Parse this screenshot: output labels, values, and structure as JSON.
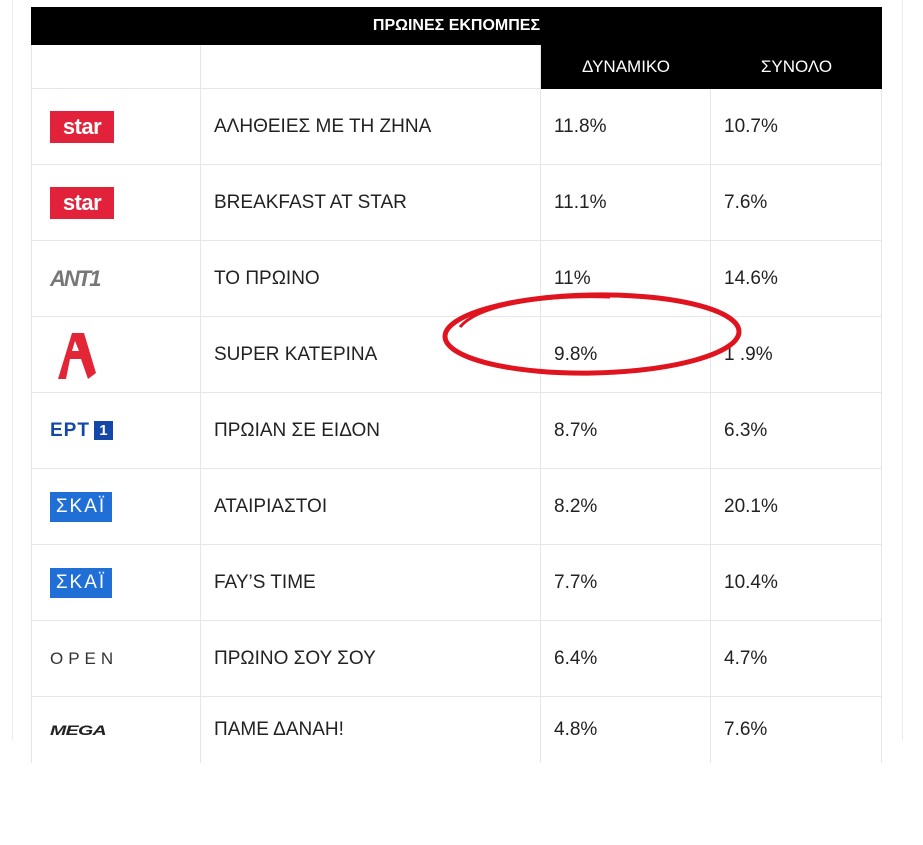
{
  "table": {
    "title": "ΠΡΩΙΝΕΣ ΕΚΠΟΜΠΕΣ",
    "columns": [
      "",
      "",
      "ΔΥΝΑΜΙΚΟ",
      "ΣΥΝΟΛΟ"
    ],
    "rows": [
      {
        "channel": "star-logo",
        "logo_text": "star",
        "show": "ΑΛΗΘΕΙΕΣ ΜΕ ΤΗ ΖΗΝΑ",
        "dynamiko": "11.8%",
        "synolo": "10.7%"
      },
      {
        "channel": "star-logo",
        "logo_text": "star",
        "show": "BREAKFAST AT STAR",
        "dynamiko": "11.1%",
        "synolo": "7.6%"
      },
      {
        "channel": "ant1-logo",
        "logo_text": "ANT1",
        "show": "ΤΟ ΠΡΩΙΝΟ",
        "dynamiko": "11%",
        "synolo": "14.6%"
      },
      {
        "channel": "alpha-logo",
        "logo_text": "",
        "show": "SUPER ΚΑΤΕΡΙΝΑ",
        "dynamiko": "9.8%",
        "synolo": "1 .9%"
      },
      {
        "channel": "ert1-logo",
        "logo_text": "ΕΡΤ",
        "logo_num": "1",
        "show": "ΠΡΩΙΑΝ ΣΕ ΕΙΔΟΝ",
        "dynamiko": "8.7%",
        "synolo": "6.3%"
      },
      {
        "channel": "skai-logo",
        "logo_text": "ΣΚΑΪ",
        "show": "ΑΤΑΙΡΙΑΣΤΟΙ",
        "dynamiko": "8.2%",
        "synolo": "20.1%"
      },
      {
        "channel": "skai-logo",
        "logo_text": "ΣΚΑΪ",
        "show": "FAY’S TIME",
        "dynamiko": "7.7%",
        "synolo": "10.4%"
      },
      {
        "channel": "open-logo",
        "logo_text": "OPEN",
        "show": "ΠΡΩΙΝΟ ΣΟΥ ΣΟΥ",
        "dynamiko": "6.4%",
        "synolo": "4.7%"
      },
      {
        "channel": "mega-logo",
        "logo_text": "MEGA",
        "show": "ΠΑΜΕ ΔΑΝΑΗ!",
        "dynamiko": "4.8%",
        "synolo": "7.6%"
      }
    ]
  },
  "colors": {
    "header_bg": "#000000",
    "star_red": "#e1223a",
    "skai_blue": "#1f6fd6",
    "ert_blue": "#1547a8",
    "alpha_red": "#e32636",
    "annotation_red": "#e0141e"
  },
  "annotation": {
    "shape": "red-ellipse-circle",
    "highlights_row": 4
  }
}
